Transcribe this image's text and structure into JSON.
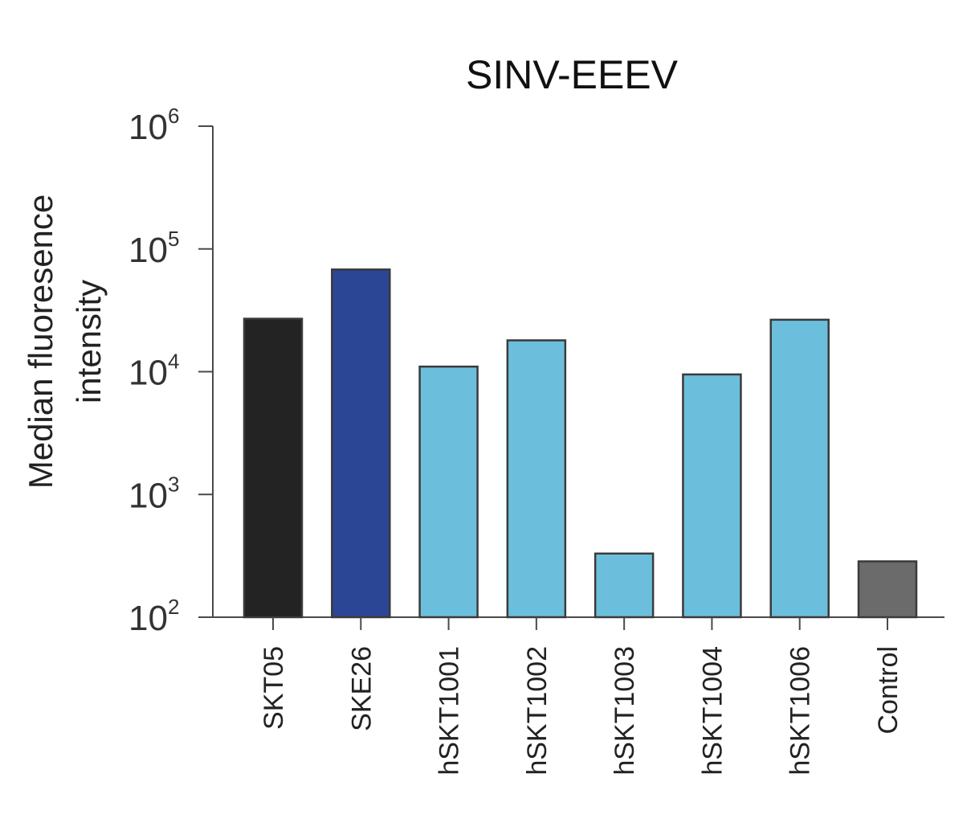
{
  "chart_data": {
    "type": "bar",
    "title": "SINV-EEEV",
    "ylabel": [
      "Median fluoresence",
      "intensity"
    ],
    "xlabel": "",
    "yscale": "log",
    "ylim": [
      100,
      1000000
    ],
    "yticks": [
      {
        "base": "10",
        "exp": "2",
        "value": 100
      },
      {
        "base": "10",
        "exp": "3",
        "value": 1000
      },
      {
        "base": "10",
        "exp": "4",
        "value": 10000
      },
      {
        "base": "10",
        "exp": "5",
        "value": 100000
      },
      {
        "base": "10",
        "exp": "6",
        "value": 1000000
      }
    ],
    "categories": [
      "SKT05",
      "SKE26",
      "hSKT1001",
      "hSKT1002",
      "hSKT1003",
      "hSKT1004",
      "hSKT1006",
      "Control"
    ],
    "values": [
      27000,
      68000,
      11000,
      18000,
      330,
      9500,
      26500,
      285
    ],
    "colors": [
      "#232323",
      "#2b4695",
      "#6cbfdc",
      "#6cbfdc",
      "#6cbfdc",
      "#6cbfdc",
      "#6cbfdc",
      "#6b6b6b"
    ],
    "grid": false,
    "legend": "none"
  }
}
